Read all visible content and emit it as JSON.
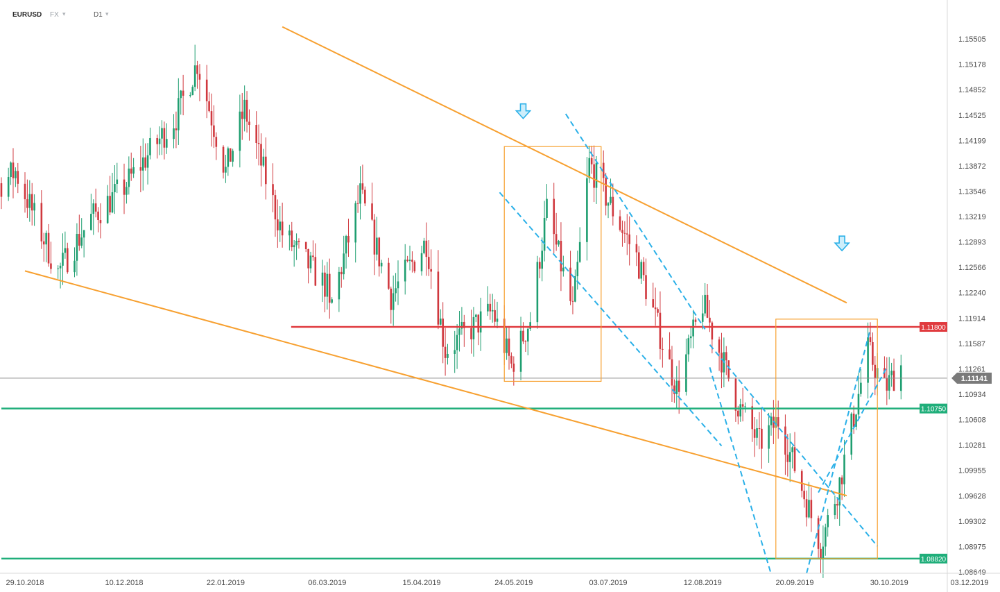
{
  "header": {
    "symbol": "EURUSD",
    "market": "FX",
    "timeframe": "D1"
  },
  "chart_data": {
    "type": "candlestick",
    "symbol": "EURUSD",
    "timeframe": "D1",
    "y_ticks": [
      1.15505,
      1.15178,
      1.14852,
      1.14525,
      1.14199,
      1.13872,
      1.13546,
      1.13219,
      1.12893,
      1.12566,
      1.1224,
      1.11914,
      1.11587,
      1.11261,
      1.10934,
      1.10608,
      1.10281,
      1.09955,
      1.09628,
      1.09302,
      1.08975,
      1.08649
    ],
    "x_ticks": [
      "29.10.2018",
      "10.12.2018",
      "22.01.2019",
      "06.03.2019",
      "15.04.2019",
      "24.05.2019",
      "03.07.2019",
      "12.08.2019",
      "20.09.2019",
      "30.10.2019",
      "03.12.2019"
    ],
    "ylim": [
      1.0858,
      1.1578
    ],
    "current_price": "1.11141",
    "levels": [
      {
        "label": "1.11800",
        "value": 1.118,
        "color": "#e03a3e",
        "from": "06.03.2019"
      },
      {
        "label": "1.10750",
        "value": 1.1075,
        "color": "#1fae7a",
        "from": "29.10.2018"
      },
      {
        "label": "1.08820",
        "value": 1.0882,
        "color": "#1fae7a",
        "from": "29.10.2018"
      }
    ],
    "trendlines": [
      {
        "kind": "orange-upper",
        "color": "#f7a030",
        "from": [
          "15.02.2019",
          1.1566
        ],
        "to": [
          "12.10.2019",
          1.1211
        ]
      },
      {
        "kind": "orange-lower",
        "color": "#f7a030",
        "from": [
          "29.10.2018",
          1.1252
        ],
        "to": [
          "12.10.2019",
          1.0963
        ]
      },
      {
        "kind": "blue-dashed",
        "color": "#2ab0e8",
        "from": [
          "15.06.2019",
          1.1454
        ],
        "to": [
          "13.08.2019",
          1.1177
        ]
      },
      {
        "kind": "blue-dashed",
        "color": "#2ab0e8",
        "from": [
          "18.05.2019",
          1.1353
        ],
        "to": [
          "20.08.2019",
          1.1027
        ]
      },
      {
        "kind": "blue-dashed",
        "color": "#2ab0e8",
        "from": [
          "15.08.2019",
          1.1157
        ],
        "to": [
          "25.10.2019",
          1.0898
        ]
      },
      {
        "kind": "blue-dashed",
        "color": "#2ab0e8",
        "from": [
          "15.08.2019",
          1.1128
        ],
        "to": [
          "10.09.2019",
          1.0862
        ]
      },
      {
        "kind": "blue-dashed",
        "color": "#2ab0e8",
        "from": [
          "25.09.2019",
          1.0863
        ],
        "to": [
          "22.10.2019",
          1.1177
        ]
      },
      {
        "kind": "blue-dashed",
        "color": "#2ab0e8",
        "from": [
          "30.09.2019",
          1.0967
        ],
        "to": [
          "29.10.2019",
          1.1128
        ]
      }
    ],
    "boxes": [
      {
        "from": "20.05.2019",
        "to": "30.06.2019",
        "top": 1.1412,
        "bottom": 1.111,
        "color": "#f7a030"
      },
      {
        "from": "12.09.2019",
        "to": "25.10.2019",
        "top": 1.119,
        "bottom": 1.0882,
        "color": "#f7a030"
      }
    ],
    "arrows": [
      {
        "date": "28.05.2019",
        "price": 1.1457,
        "direction": "down",
        "color": "#2ab0e8"
      },
      {
        "date": "10.10.2019",
        "price": 1.1287,
        "direction": "down",
        "color": "#2ab0e8"
      }
    ],
    "colors": {
      "up": "#1e9e70",
      "down": "#d0383e",
      "price_line": "#8c8c8c"
    },
    "grid": false
  }
}
